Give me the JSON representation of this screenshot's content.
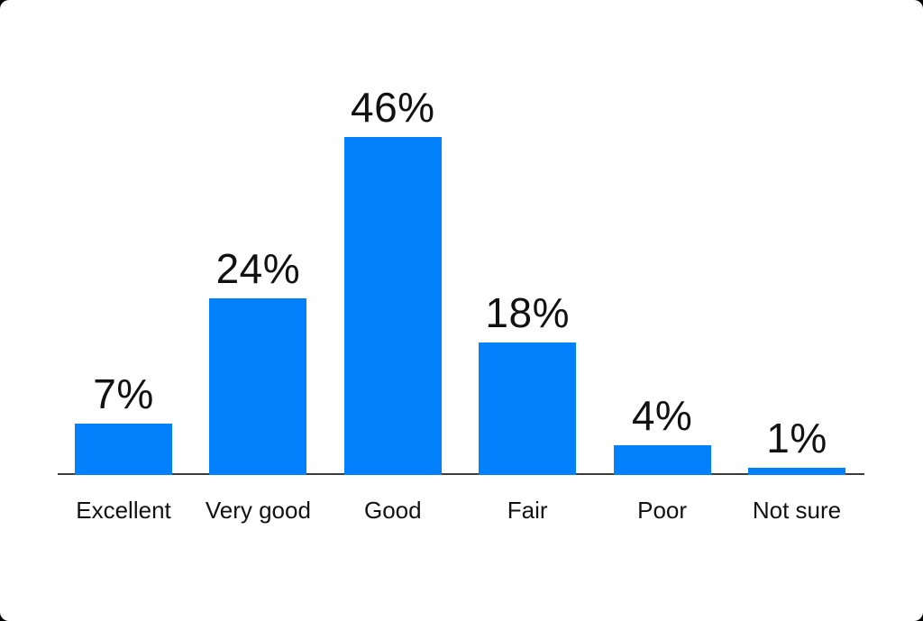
{
  "page": {
    "background_color": "#000000",
    "card_color": "#ffffff"
  },
  "chart_data": {
    "type": "bar",
    "title": "",
    "xlabel": "",
    "ylabel": "",
    "categories": [
      "Excellent",
      "Very good",
      "Good",
      "Fair",
      "Poor",
      "Not sure"
    ],
    "values": [
      7,
      24,
      46,
      18,
      4,
      1
    ],
    "value_labels": [
      "7%",
      "24%",
      "46%",
      "18%",
      "4%",
      "1%"
    ],
    "ylim": [
      0,
      50
    ],
    "grid": false,
    "legend": false,
    "value_label_position": "above-bar",
    "bar_color": "#0380FC",
    "axis_color": "#3b3b3b",
    "text_color": "#111111"
  }
}
